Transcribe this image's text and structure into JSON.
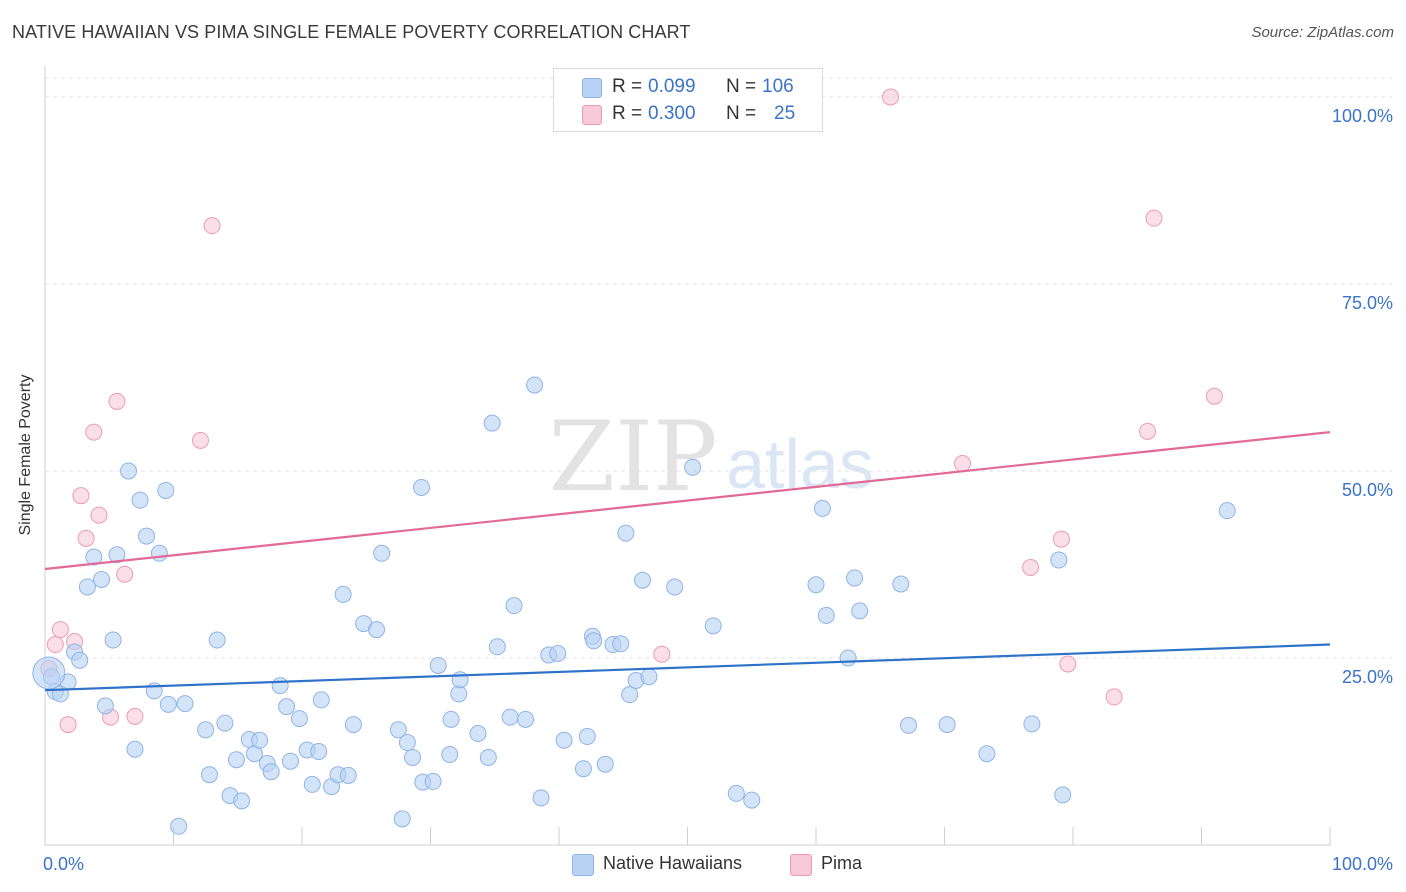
{
  "header": {
    "title": "NATIVE HAWAIIAN VS PIMA SINGLE FEMALE POVERTY CORRELATION CHART",
    "source": "Source: ZipAtlas.com"
  },
  "colors": {
    "blue_fill": "#b8d2f3",
    "blue_stroke": "#8fb4e6",
    "blue_line": "#2f72c9",
    "pink_fill": "#f8c9d8",
    "pink_stroke": "#ee9ab5",
    "pink_line": "#e26a96",
    "axis_text": "#3b73c8",
    "grid": "#e0e0e0"
  },
  "legend_top": {
    "rows": [
      {
        "r_label": "R =",
        "r_value": "0.099",
        "n_label": "N =",
        "n_value": "106"
      },
      {
        "r_label": "R =",
        "r_value": "0.300",
        "n_label": "N =",
        "n_value": "25"
      }
    ]
  },
  "legend_bottom": {
    "items": [
      "Native Hawaiians",
      "Pima"
    ]
  },
  "watermark": {
    "zip": "ZIP",
    "atlas": "atlas"
  },
  "chart_data": {
    "type": "scatter",
    "title": "NATIVE HAWAIIAN VS PIMA SINGLE FEMALE POVERTY CORRELATION CHART",
    "xlabel": "",
    "ylabel": "Single Female Poverty",
    "xlim": [
      0,
      100
    ],
    "ylim": [
      0,
      100
    ],
    "x_tick_labels": [
      "0.0%",
      "100.0%"
    ],
    "y_ticks": [
      {
        "value": 100,
        "label": "100.0%"
      },
      {
        "value": 75,
        "label": "75.0%"
      },
      {
        "value": 50,
        "label": "50.0%"
      },
      {
        "value": 25,
        "label": "25.0%"
      }
    ],
    "series": [
      {
        "name": "Native Hawaiians",
        "r": 0.099,
        "n": 106,
        "trend": {
          "x": [
            0,
            100
          ],
          "y": [
            20.7,
            26.8
          ]
        },
        "points": [
          [
            0.5,
            22.5
          ],
          [
            0.8,
            20.5
          ],
          [
            1.2,
            20.2
          ],
          [
            1.8,
            21.8
          ],
          [
            2.3,
            25.8
          ],
          [
            2.7,
            24.7
          ],
          [
            3.3,
            34.5
          ],
          [
            3.8,
            38.5
          ],
          [
            4.4,
            35.5
          ],
          [
            4.7,
            18.6
          ],
          [
            5.3,
            27.4
          ],
          [
            5.6,
            38.8
          ],
          [
            6.5,
            50.0
          ],
          [
            7.0,
            12.8
          ],
          [
            7.4,
            46.1
          ],
          [
            7.9,
            41.3
          ],
          [
            8.5,
            20.6
          ],
          [
            8.9,
            39.0
          ],
          [
            9.4,
            47.4
          ],
          [
            9.6,
            18.8
          ],
          [
            10.4,
            2.5
          ],
          [
            10.9,
            18.9
          ],
          [
            12.5,
            15.4
          ],
          [
            12.8,
            9.4
          ],
          [
            13.4,
            27.4
          ],
          [
            14.0,
            16.3
          ],
          [
            14.4,
            6.6
          ],
          [
            14.9,
            11.4
          ],
          [
            15.3,
            5.9
          ],
          [
            15.9,
            14.1
          ],
          [
            16.3,
            12.2
          ],
          [
            16.7,
            14.0
          ],
          [
            17.3,
            10.9
          ],
          [
            17.6,
            9.8
          ],
          [
            18.3,
            21.3
          ],
          [
            18.8,
            18.5
          ],
          [
            19.1,
            11.2
          ],
          [
            19.8,
            16.9
          ],
          [
            20.4,
            12.7
          ],
          [
            20.8,
            8.1
          ],
          [
            21.3,
            12.5
          ],
          [
            21.5,
            19.4
          ],
          [
            22.3,
            7.8
          ],
          [
            22.8,
            9.4
          ],
          [
            23.6,
            9.3
          ],
          [
            23.2,
            33.5
          ],
          [
            24.0,
            16.1
          ],
          [
            24.8,
            29.6
          ],
          [
            25.8,
            28.8
          ],
          [
            26.2,
            39.0
          ],
          [
            27.5,
            15.4
          ],
          [
            27.8,
            3.5
          ],
          [
            28.2,
            13.7
          ],
          [
            28.6,
            11.7
          ],
          [
            29.3,
            47.8
          ],
          [
            29.4,
            8.4
          ],
          [
            30.2,
            8.5
          ],
          [
            30.6,
            24.0
          ],
          [
            31.5,
            12.1
          ],
          [
            31.6,
            16.8
          ],
          [
            32.2,
            20.2
          ],
          [
            32.3,
            22.1
          ],
          [
            33.7,
            14.9
          ],
          [
            34.5,
            11.7
          ],
          [
            34.8,
            56.4
          ],
          [
            35.2,
            26.5
          ],
          [
            36.2,
            17.1
          ],
          [
            36.5,
            32.0
          ],
          [
            37.4,
            16.8
          ],
          [
            38.1,
            61.5
          ],
          [
            38.6,
            6.3
          ],
          [
            39.2,
            25.4
          ],
          [
            39.9,
            25.6
          ],
          [
            40.4,
            14.0
          ],
          [
            41.9,
            10.2
          ],
          [
            42.2,
            14.5
          ],
          [
            42.6,
            27.9
          ],
          [
            42.7,
            27.3
          ],
          [
            43.6,
            10.8
          ],
          [
            44.2,
            26.8
          ],
          [
            44.8,
            26.9
          ],
          [
            45.2,
            41.7
          ],
          [
            45.5,
            20.1
          ],
          [
            46.0,
            22.0
          ],
          [
            46.5,
            35.4
          ],
          [
            47.0,
            22.5
          ],
          [
            49.0,
            34.5
          ],
          [
            50.4,
            50.5
          ],
          [
            52.0,
            29.3
          ],
          [
            53.8,
            6.9
          ],
          [
            55.0,
            6.0
          ],
          [
            60.0,
            34.8
          ],
          [
            60.5,
            45.0
          ],
          [
            60.8,
            30.7
          ],
          [
            62.5,
            25.0
          ],
          [
            63.0,
            35.7
          ],
          [
            63.4,
            31.3
          ],
          [
            66.6,
            34.9
          ],
          [
            67.2,
            16.0
          ],
          [
            70.2,
            16.1
          ],
          [
            73.3,
            12.2
          ],
          [
            76.8,
            16.2
          ],
          [
            78.9,
            38.1
          ],
          [
            79.2,
            6.7
          ],
          [
            92.0,
            44.7
          ],
          [
            0.3,
            23.0
          ]
        ]
      },
      {
        "name": "Pima",
        "r": 0.3,
        "n": 25,
        "trend": {
          "x": [
            0,
            100
          ],
          "y": [
            36.9,
            55.2
          ]
        },
        "points": [
          [
            0.3,
            23.6
          ],
          [
            0.8,
            26.8
          ],
          [
            1.2,
            28.8
          ],
          [
            1.8,
            16.1
          ],
          [
            2.3,
            27.2
          ],
          [
            2.8,
            46.7
          ],
          [
            3.2,
            41.0
          ],
          [
            3.8,
            55.2
          ],
          [
            4.2,
            44.1
          ],
          [
            5.1,
            17.1
          ],
          [
            5.6,
            59.3
          ],
          [
            6.2,
            36.2
          ],
          [
            7.0,
            17.2
          ],
          [
            12.1,
            54.1
          ],
          [
            13.0,
            82.8
          ],
          [
            48.0,
            25.5
          ],
          [
            65.8,
            100.0
          ],
          [
            71.4,
            51.0
          ],
          [
            76.7,
            37.1
          ],
          [
            79.1,
            40.9
          ],
          [
            79.6,
            24.2
          ],
          [
            83.2,
            19.8
          ],
          [
            85.8,
            55.3
          ],
          [
            86.3,
            83.8
          ],
          [
            91.0,
            60.0
          ]
        ]
      }
    ]
  }
}
